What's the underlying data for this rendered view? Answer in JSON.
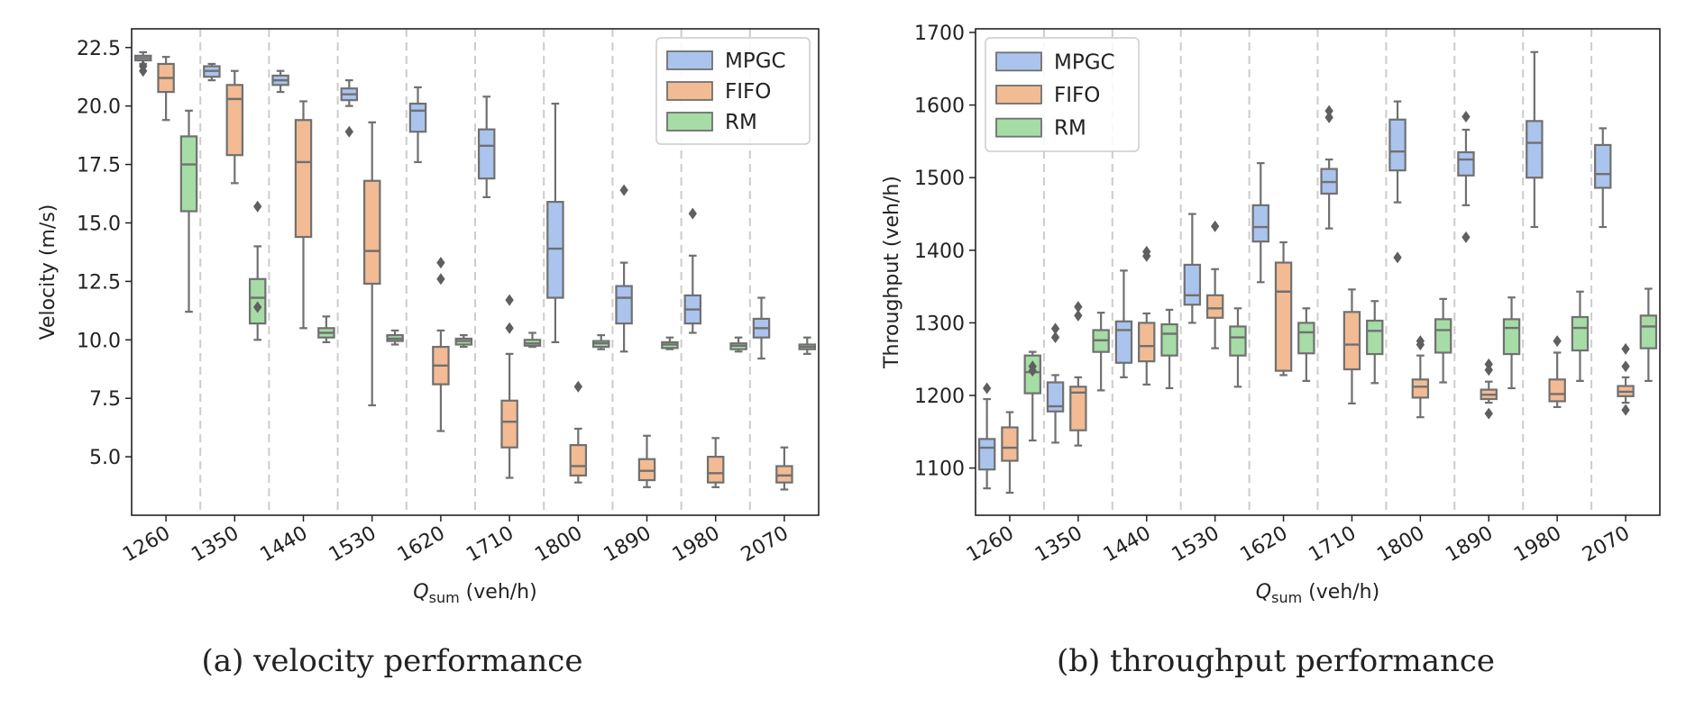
{
  "captions": [
    "(a) velocity performance",
    "(b) throughput performance"
  ],
  "series_colors": {
    "MPGC": "#aac4ee",
    "FIFO": "#f2bb94",
    "RM": "#a6dca6"
  },
  "outline_color": "#707070",
  "chart_data": [
    {
      "type": "box",
      "caption": "(a) velocity performance",
      "xlabel": "Q_sum (veh/h)",
      "xlabel_main": "Q",
      "xlabel_sub": "sum",
      "xlabel_unit": " (veh/h)",
      "ylabel": "Velocity (m/s)",
      "ylim": [
        2.5,
        23.3
      ],
      "yticks": [
        5.0,
        7.5,
        10.0,
        12.5,
        15.0,
        17.5,
        20.0,
        22.5
      ],
      "ytick_labels": [
        "5.0",
        "7.5",
        "10.0",
        "12.5",
        "15.0",
        "17.5",
        "20.0",
        "22.5"
      ],
      "categories": [
        "1260",
        "1350",
        "1440",
        "1530",
        "1620",
        "1710",
        "1800",
        "1890",
        "1980",
        "2070"
      ],
      "legend": {
        "position": "upper right",
        "entries": [
          "MPGC",
          "FIFO",
          "RM"
        ]
      },
      "grid": "vertical dashed separators between categories",
      "series": [
        {
          "name": "MPGC",
          "boxes": [
            {
              "wlo": 21.8,
              "q1": 21.95,
              "med": 22.05,
              "q3": 22.15,
              "whi": 22.3,
              "fliers": [
                21.7,
                21.5
              ]
            },
            {
              "wlo": 21.1,
              "q1": 21.25,
              "med": 21.5,
              "q3": 21.7,
              "whi": 21.8,
              "fliers": []
            },
            {
              "wlo": 20.6,
              "q1": 20.9,
              "med": 21.1,
              "q3": 21.3,
              "whi": 21.5,
              "fliers": []
            },
            {
              "wlo": 20.0,
              "q1": 20.25,
              "med": 20.5,
              "q3": 20.75,
              "whi": 21.1,
              "fliers": [
                18.9
              ]
            },
            {
              "wlo": 17.6,
              "q1": 18.9,
              "med": 19.8,
              "q3": 20.1,
              "whi": 20.8,
              "fliers": []
            },
            {
              "wlo": 16.1,
              "q1": 16.9,
              "med": 18.3,
              "q3": 19.0,
              "whi": 20.4,
              "fliers": []
            },
            {
              "wlo": 9.9,
              "q1": 11.8,
              "med": 13.9,
              "q3": 15.9,
              "whi": 20.1,
              "fliers": []
            },
            {
              "wlo": 9.5,
              "q1": 10.7,
              "med": 11.8,
              "q3": 12.3,
              "whi": 13.3,
              "fliers": [
                16.4
              ]
            },
            {
              "wlo": 10.3,
              "q1": 10.7,
              "med": 11.3,
              "q3": 11.9,
              "whi": 13.6,
              "fliers": [
                15.4
              ]
            },
            {
              "wlo": 9.2,
              "q1": 10.1,
              "med": 10.5,
              "q3": 10.9,
              "whi": 11.8,
              "fliers": []
            }
          ]
        },
        {
          "name": "FIFO",
          "boxes": [
            {
              "wlo": 19.4,
              "q1": 20.6,
              "med": 21.2,
              "q3": 21.8,
              "whi": 22.1,
              "fliers": []
            },
            {
              "wlo": 16.7,
              "q1": 17.9,
              "med": 20.3,
              "q3": 20.9,
              "whi": 21.5,
              "fliers": []
            },
            {
              "wlo": 10.5,
              "q1": 14.4,
              "med": 17.6,
              "q3": 19.4,
              "whi": 20.2,
              "fliers": []
            },
            {
              "wlo": 7.2,
              "q1": 12.4,
              "med": 13.8,
              "q3": 16.8,
              "whi": 19.3,
              "fliers": []
            },
            {
              "wlo": 6.1,
              "q1": 8.1,
              "med": 8.9,
              "q3": 9.7,
              "whi": 10.4,
              "fliers": [
                13.3,
                12.6
              ]
            },
            {
              "wlo": 4.1,
              "q1": 5.4,
              "med": 6.5,
              "q3": 7.4,
              "whi": 9.4,
              "fliers": [
                11.7,
                10.5
              ]
            },
            {
              "wlo": 3.9,
              "q1": 4.2,
              "med": 4.6,
              "q3": 5.5,
              "whi": 6.2,
              "fliers": [
                8.0
              ]
            },
            {
              "wlo": 3.7,
              "q1": 4.0,
              "med": 4.4,
              "q3": 4.9,
              "whi": 5.9,
              "fliers": []
            },
            {
              "wlo": 3.7,
              "q1": 3.9,
              "med": 4.3,
              "q3": 5.0,
              "whi": 5.8,
              "fliers": []
            },
            {
              "wlo": 3.6,
              "q1": 3.9,
              "med": 4.2,
              "q3": 4.6,
              "whi": 5.4,
              "fliers": []
            }
          ]
        },
        {
          "name": "RM",
          "boxes": [
            {
              "wlo": 11.2,
              "q1": 15.5,
              "med": 17.5,
              "q3": 18.7,
              "whi": 19.8,
              "fliers": []
            },
            {
              "wlo": 10.0,
              "q1": 10.7,
              "med": 11.8,
              "q3": 12.6,
              "whi": 14.0,
              "fliers": [
                15.7,
                11.4
              ]
            },
            {
              "wlo": 9.9,
              "q1": 10.1,
              "med": 10.3,
              "q3": 10.5,
              "whi": 11.0,
              "fliers": []
            },
            {
              "wlo": 9.8,
              "q1": 9.95,
              "med": 10.05,
              "q3": 10.2,
              "whi": 10.4,
              "fliers": []
            },
            {
              "wlo": 9.7,
              "q1": 9.8,
              "med": 9.95,
              "q3": 10.05,
              "whi": 10.2,
              "fliers": []
            },
            {
              "wlo": 9.7,
              "q1": 9.75,
              "med": 9.85,
              "q3": 10.0,
              "whi": 10.3,
              "fliers": []
            },
            {
              "wlo": 9.6,
              "q1": 9.7,
              "med": 9.85,
              "q3": 9.95,
              "whi": 10.2,
              "fliers": []
            },
            {
              "wlo": 9.6,
              "q1": 9.65,
              "med": 9.8,
              "q3": 9.9,
              "whi": 10.1,
              "fliers": []
            },
            {
              "wlo": 9.5,
              "q1": 9.6,
              "med": 9.75,
              "q3": 9.85,
              "whi": 10.1,
              "fliers": []
            },
            {
              "wlo": 9.4,
              "q1": 9.6,
              "med": 9.7,
              "q3": 9.8,
              "whi": 10.1,
              "fliers": []
            }
          ]
        }
      ]
    },
    {
      "type": "box",
      "caption": "(b) throughput performance",
      "xlabel": "Q_sum (veh/h)",
      "xlabel_main": "Q",
      "xlabel_sub": "sum",
      "xlabel_unit": " (veh/h)",
      "ylabel": "Throughput (veh/h)",
      "ylim": [
        1035,
        1705
      ],
      "yticks": [
        1100,
        1200,
        1300,
        1400,
        1500,
        1600,
        1700
      ],
      "ytick_labels": [
        "1100",
        "1200",
        "1300",
        "1400",
        "1500",
        "1600",
        "1700"
      ],
      "categories": [
        "1260",
        "1350",
        "1440",
        "1530",
        "1620",
        "1710",
        "1800",
        "1890",
        "1980",
        "2070"
      ],
      "legend": {
        "position": "upper left",
        "entries": [
          "MPGC",
          "FIFO",
          "RM"
        ]
      },
      "grid": "vertical dashed separators between categories",
      "series": [
        {
          "name": "MPGC",
          "boxes": [
            {
              "wlo": 1072,
              "q1": 1098,
              "med": 1128,
              "q3": 1140,
              "whi": 1195,
              "fliers": [
                1210
              ]
            },
            {
              "wlo": 1135,
              "q1": 1178,
              "med": 1185,
              "q3": 1218,
              "whi": 1228,
              "fliers": [
                1292,
                1280
              ]
            },
            {
              "wlo": 1225,
              "q1": 1245,
              "med": 1290,
              "q3": 1302,
              "whi": 1372,
              "fliers": []
            },
            {
              "wlo": 1300,
              "q1": 1325,
              "med": 1338,
              "q3": 1380,
              "whi": 1450,
              "fliers": []
            },
            {
              "wlo": 1356,
              "q1": 1412,
              "med": 1432,
              "q3": 1462,
              "whi": 1520,
              "fliers": []
            },
            {
              "wlo": 1430,
              "q1": 1478,
              "med": 1494,
              "q3": 1512,
              "whi": 1525,
              "fliers": [
                1592,
                1583
              ]
            },
            {
              "wlo": 1466,
              "q1": 1510,
              "med": 1536,
              "q3": 1580,
              "whi": 1605,
              "fliers": [
                1390
              ]
            },
            {
              "wlo": 1462,
              "q1": 1503,
              "med": 1525,
              "q3": 1535,
              "whi": 1566,
              "fliers": [
                1584,
                1418
              ]
            },
            {
              "wlo": 1432,
              "q1": 1500,
              "med": 1548,
              "q3": 1578,
              "whi": 1673,
              "fliers": []
            },
            {
              "wlo": 1432,
              "q1": 1486,
              "med": 1505,
              "q3": 1545,
              "whi": 1568,
              "fliers": []
            }
          ]
        },
        {
          "name": "FIFO",
          "boxes": [
            {
              "wlo": 1066,
              "q1": 1110,
              "med": 1128,
              "q3": 1156,
              "whi": 1177,
              "fliers": []
            },
            {
              "wlo": 1131,
              "q1": 1152,
              "med": 1204,
              "q3": 1212,
              "whi": 1225,
              "fliers": [
                1322,
                1310
              ]
            },
            {
              "wlo": 1215,
              "q1": 1247,
              "med": 1268,
              "q3": 1300,
              "whi": 1313,
              "fliers": [
                1398,
                1392
              ]
            },
            {
              "wlo": 1265,
              "q1": 1307,
              "med": 1320,
              "q3": 1338,
              "whi": 1374,
              "fliers": [
                1433
              ]
            },
            {
              "wlo": 1228,
              "q1": 1234,
              "med": 1343,
              "q3": 1383,
              "whi": 1411,
              "fliers": []
            },
            {
              "wlo": 1189,
              "q1": 1236,
              "med": 1270,
              "q3": 1315,
              "whi": 1346,
              "fliers": []
            },
            {
              "wlo": 1170,
              "q1": 1197,
              "med": 1212,
              "q3": 1222,
              "whi": 1255,
              "fliers": [
                1275,
                1270
              ]
            },
            {
              "wlo": 1190,
              "q1": 1195,
              "med": 1201,
              "q3": 1208,
              "whi": 1219,
              "fliers": [
                1243,
                1235,
                1175
              ]
            },
            {
              "wlo": 1184,
              "q1": 1192,
              "med": 1202,
              "q3": 1222,
              "whi": 1259,
              "fliers": [
                1275
              ]
            },
            {
              "wlo": 1190,
              "q1": 1199,
              "med": 1205,
              "q3": 1213,
              "whi": 1225,
              "fliers": [
                1264,
                1240,
                1180
              ]
            }
          ]
        },
        {
          "name": "RM",
          "boxes": [
            {
              "wlo": 1138,
              "q1": 1203,
              "med": 1232,
              "q3": 1255,
              "whi": 1260,
              "fliers": [
                1240,
                1234
              ]
            },
            {
              "wlo": 1207,
              "q1": 1260,
              "med": 1276,
              "q3": 1290,
              "whi": 1314,
              "fliers": []
            },
            {
              "wlo": 1210,
              "q1": 1255,
              "med": 1285,
              "q3": 1298,
              "whi": 1318,
              "fliers": []
            },
            {
              "wlo": 1212,
              "q1": 1255,
              "med": 1280,
              "q3": 1295,
              "whi": 1320,
              "fliers": []
            },
            {
              "wlo": 1220,
              "q1": 1258,
              "med": 1287,
              "q3": 1300,
              "whi": 1320,
              "fliers": []
            },
            {
              "wlo": 1217,
              "q1": 1257,
              "med": 1289,
              "q3": 1303,
              "whi": 1330,
              "fliers": []
            },
            {
              "wlo": 1218,
              "q1": 1259,
              "med": 1290,
              "q3": 1305,
              "whi": 1333,
              "fliers": []
            },
            {
              "wlo": 1210,
              "q1": 1257,
              "med": 1293,
              "q3": 1305,
              "whi": 1335,
              "fliers": []
            },
            {
              "wlo": 1220,
              "q1": 1262,
              "med": 1293,
              "q3": 1308,
              "whi": 1343,
              "fliers": []
            },
            {
              "wlo": 1220,
              "q1": 1265,
              "med": 1295,
              "q3": 1310,
              "whi": 1347,
              "fliers": []
            }
          ]
        }
      ]
    }
  ]
}
